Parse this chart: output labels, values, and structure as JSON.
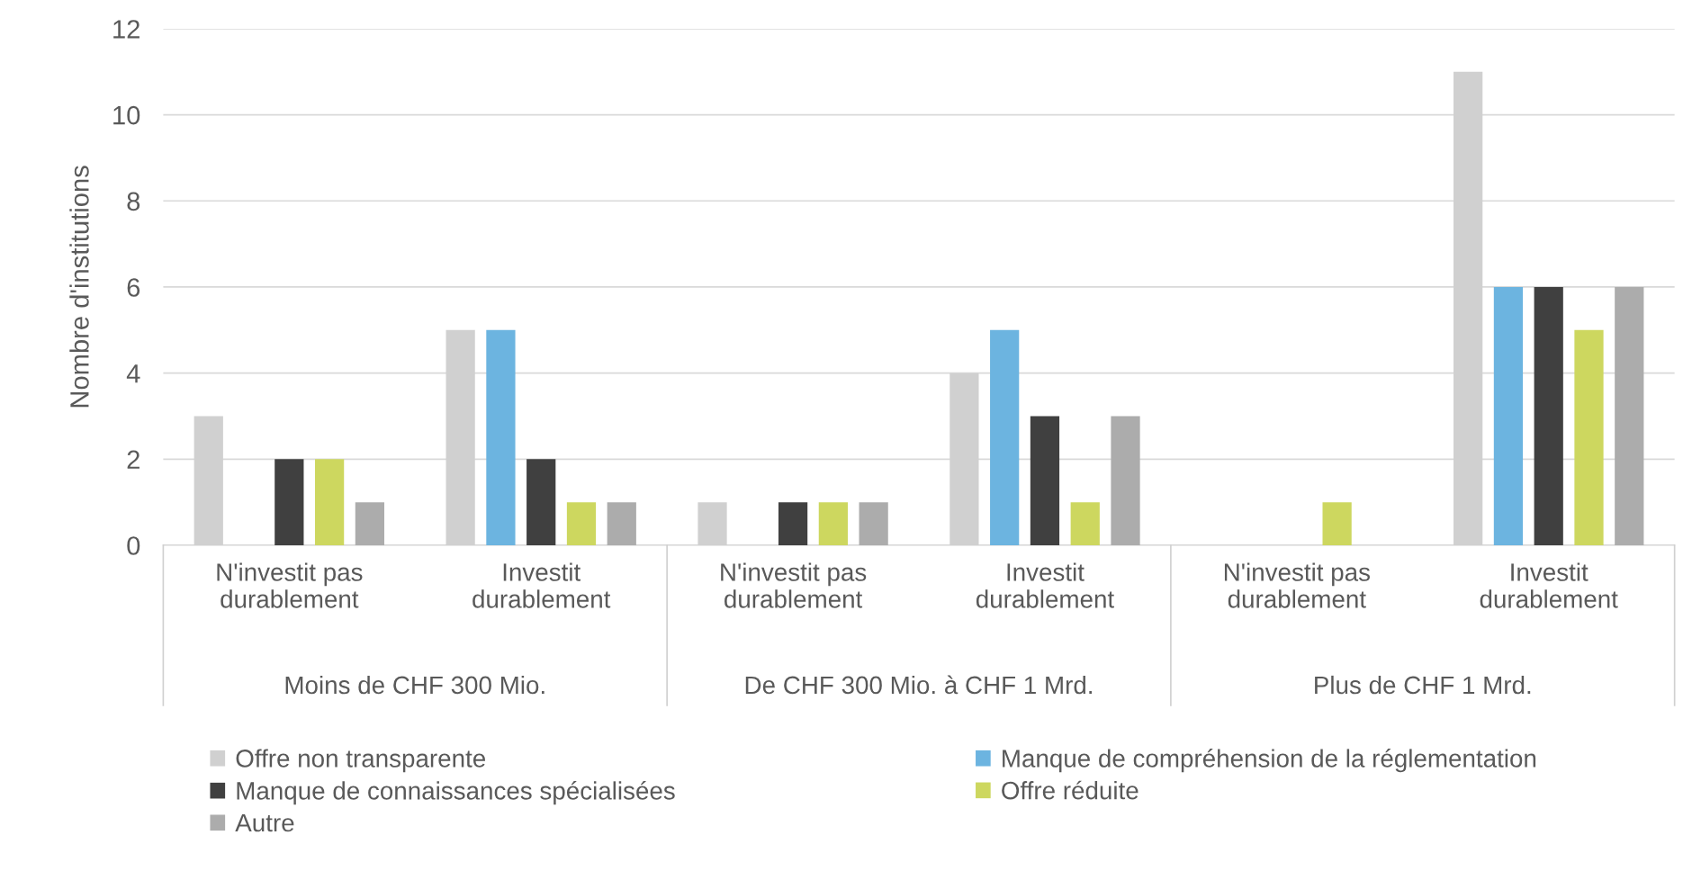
{
  "chart_data": {
    "type": "bar",
    "ylabel": "Nombre d'institutions",
    "categories": [
      "N'investit pas\ndurablement",
      "Investit\ndurablement",
      "N'investit pas\ndurablement",
      "Investit\ndurablement",
      "N'investit pas\ndurablement",
      "Investit\ndurablement"
    ],
    "annotations": [
      "Moins de CHF 300 Mio.",
      "De CHF 300 Mio. à CHF 1 Mrd.",
      "Plus de CHF 1 Mrd."
    ],
    "series": [
      {
        "name": "Offre non transparente",
        "color": "#d0d0d0",
        "values": [
          3,
          5,
          1,
          4,
          0,
          11
        ]
      },
      {
        "name": "Manque de compréhension de la réglementation",
        "color": "#6cb4e0",
        "values": [
          0,
          5,
          0,
          5,
          0,
          6
        ]
      },
      {
        "name": "Manque de connaissances spécialisées",
        "color": "#404040",
        "values": [
          2,
          2,
          1,
          3,
          0,
          6
        ]
      },
      {
        "name": "Offre réduite",
        "color": "#cdd75f",
        "values": [
          2,
          1,
          1,
          1,
          1,
          5
        ]
      },
      {
        "name": "Autre",
        "color": "#acacac",
        "values": [
          1,
          1,
          1,
          3,
          0,
          6
        ]
      }
    ],
    "ylim": [
      0,
      12
    ],
    "yticks": [
      0,
      2,
      4,
      6,
      8,
      10,
      12
    ],
    "grid": "y",
    "legend": "bottom"
  }
}
